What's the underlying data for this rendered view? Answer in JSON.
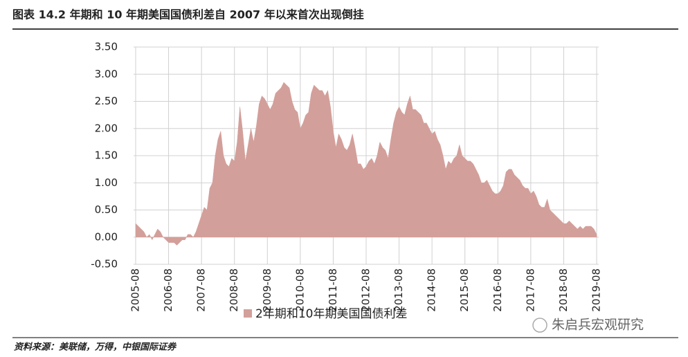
{
  "header": {
    "title": "图表 14.2 年期和 10 年期美国国债利差自 2007 年以来首次出现倒挂"
  },
  "chart_data": {
    "type": "area",
    "x": [
      "2005-08",
      "2005-09",
      "2005-10",
      "2005-11",
      "2005-12",
      "2006-01",
      "2006-02",
      "2006-03",
      "2006-04",
      "2006-05",
      "2006-06",
      "2006-07",
      "2006-08",
      "2006-09",
      "2006-10",
      "2006-11",
      "2006-12",
      "2007-01",
      "2007-02",
      "2007-03",
      "2007-04",
      "2007-05",
      "2007-06",
      "2007-07",
      "2007-08",
      "2007-09",
      "2007-10",
      "2007-11",
      "2007-12",
      "2008-01",
      "2008-02",
      "2008-03",
      "2008-04",
      "2008-05",
      "2008-06",
      "2008-07",
      "2008-08",
      "2008-09",
      "2008-10",
      "2008-11",
      "2008-12",
      "2009-01",
      "2009-02",
      "2009-03",
      "2009-04",
      "2009-05",
      "2009-06",
      "2009-07",
      "2009-08",
      "2009-09",
      "2009-10",
      "2009-11",
      "2009-12",
      "2010-01",
      "2010-02",
      "2010-03",
      "2010-04",
      "2010-05",
      "2010-06",
      "2010-07",
      "2010-08",
      "2010-09",
      "2010-10",
      "2010-11",
      "2010-12",
      "2011-01",
      "2011-02",
      "2011-03",
      "2011-04",
      "2011-05",
      "2011-06",
      "2011-07",
      "2011-08",
      "2011-09",
      "2011-10",
      "2011-11",
      "2011-12",
      "2012-01",
      "2012-02",
      "2012-03",
      "2012-04",
      "2012-05",
      "2012-06",
      "2012-07",
      "2012-08",
      "2012-09",
      "2012-10",
      "2012-11",
      "2012-12",
      "2013-01",
      "2013-02",
      "2013-03",
      "2013-04",
      "2013-05",
      "2013-06",
      "2013-07",
      "2013-08",
      "2013-09",
      "2013-10",
      "2013-11",
      "2013-12",
      "2014-01",
      "2014-02",
      "2014-03",
      "2014-04",
      "2014-05",
      "2014-06",
      "2014-07",
      "2014-08",
      "2014-09",
      "2014-10",
      "2014-11",
      "2014-12",
      "2015-01",
      "2015-02",
      "2015-03",
      "2015-04",
      "2015-05",
      "2015-06",
      "2015-07",
      "2015-08",
      "2015-09",
      "2015-10",
      "2015-11",
      "2015-12",
      "2016-01",
      "2016-02",
      "2016-03",
      "2016-04",
      "2016-05",
      "2016-06",
      "2016-07",
      "2016-08",
      "2016-09",
      "2016-10",
      "2016-11",
      "2016-12",
      "2017-01",
      "2017-02",
      "2017-03",
      "2017-04",
      "2017-05",
      "2017-06",
      "2017-07",
      "2017-08",
      "2017-09",
      "2017-10",
      "2017-11",
      "2017-12",
      "2018-01",
      "2018-02",
      "2018-03",
      "2018-04",
      "2018-05",
      "2018-06",
      "2018-07",
      "2018-08",
      "2018-09",
      "2018-10",
      "2018-11",
      "2018-12",
      "2019-01",
      "2019-02",
      "2019-03",
      "2019-04",
      "2019-05",
      "2019-06",
      "2019-07",
      "2019-08"
    ],
    "series": [
      {
        "name": "2年期和10年期美国国债利差",
        "color": "#d39f9a",
        "values": [
          0.25,
          0.2,
          0.15,
          0.1,
          0.0,
          0.05,
          -0.05,
          0.05,
          0.15,
          0.1,
          0.0,
          -0.05,
          -0.1,
          -0.1,
          -0.1,
          -0.15,
          -0.1,
          -0.05,
          -0.05,
          0.05,
          0.05,
          0.0,
          0.1,
          0.25,
          0.4,
          0.55,
          0.5,
          0.9,
          1.0,
          1.5,
          1.8,
          1.95,
          1.5,
          1.35,
          1.3,
          1.45,
          1.4,
          1.75,
          2.4,
          1.95,
          1.4,
          1.7,
          2.0,
          1.75,
          2.05,
          2.45,
          2.6,
          2.55,
          2.45,
          2.35,
          2.45,
          2.65,
          2.7,
          2.75,
          2.85,
          2.8,
          2.75,
          2.5,
          2.35,
          2.3,
          2.0,
          2.1,
          2.25,
          2.3,
          2.65,
          2.8,
          2.75,
          2.7,
          2.7,
          2.6,
          2.7,
          2.4,
          1.95,
          1.65,
          1.9,
          1.8,
          1.65,
          1.6,
          1.7,
          1.9,
          1.65,
          1.35,
          1.35,
          1.25,
          1.3,
          1.4,
          1.45,
          1.35,
          1.5,
          1.75,
          1.65,
          1.6,
          1.45,
          1.8,
          2.1,
          2.3,
          2.4,
          2.3,
          2.25,
          2.45,
          2.6,
          2.35,
          2.35,
          2.3,
          2.25,
          2.1,
          2.1,
          2.0,
          1.9,
          1.95,
          1.8,
          1.7,
          1.5,
          1.25,
          1.4,
          1.35,
          1.45,
          1.5,
          1.7,
          1.5,
          1.45,
          1.4,
          1.4,
          1.35,
          1.25,
          1.15,
          1.0,
          1.0,
          1.05,
          0.95,
          0.85,
          0.8,
          0.8,
          0.85,
          0.95,
          1.2,
          1.25,
          1.25,
          1.15,
          1.1,
          1.05,
          0.95,
          0.9,
          0.9,
          0.8,
          0.85,
          0.75,
          0.6,
          0.55,
          0.55,
          0.7,
          0.5,
          0.45,
          0.4,
          0.35,
          0.3,
          0.25,
          0.25,
          0.3,
          0.25,
          0.2,
          0.15,
          0.2,
          0.15,
          0.2,
          0.2,
          0.2,
          0.15,
          0.05
        ]
      }
    ],
    "ylim": [
      -0.5,
      3.5
    ],
    "yticks": [
      {
        "value": -0.5,
        "label": "-0.50"
      },
      {
        "value": 0,
        "label": "0.00"
      },
      {
        "value": 0.5,
        "label": "0.50"
      },
      {
        "value": 1,
        "label": "1.00"
      },
      {
        "value": 1.5,
        "label": "1.50"
      },
      {
        "value": 2,
        "label": "2.00"
      },
      {
        "value": 2.5,
        "label": "2.50"
      },
      {
        "value": 3,
        "label": "3.00"
      },
      {
        "value": 3.5,
        "label": "3.50"
      }
    ],
    "grid": true
  },
  "watermark": "朱启兵宏观研究",
  "footer": {
    "source": "资料来源：美联储，万得，中银国际证券"
  }
}
